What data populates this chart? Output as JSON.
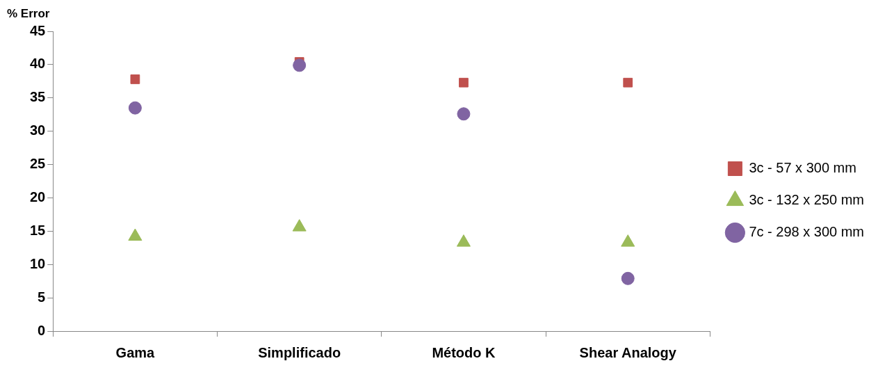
{
  "chart_data": {
    "type": "scatter",
    "ylabel": "% Error",
    "categories": [
      "Gama",
      "Simplificado",
      "Método K",
      "Shear Analogy"
    ],
    "ylim": [
      0,
      45
    ],
    "yticks": [
      0,
      5,
      10,
      15,
      20,
      25,
      30,
      35,
      40,
      45
    ],
    "grid": false,
    "legend": "right",
    "series": [
      {
        "name": "3c - 57 x 300 mm",
        "color": "#c0504d",
        "marker": "square",
        "values": [
          37.8,
          40.4,
          37.3,
          37.3
        ]
      },
      {
        "name": "3c - 132 x 250 mm",
        "color": "#9bbb59",
        "marker": "triangle",
        "values": [
          14.2,
          15.6,
          13.3,
          13.3
        ]
      },
      {
        "name": "7c - 298 x 300 mm",
        "color": "#8064a2",
        "marker": "circle",
        "values": [
          33.5,
          39.9,
          32.6,
          7.9
        ]
      }
    ]
  }
}
